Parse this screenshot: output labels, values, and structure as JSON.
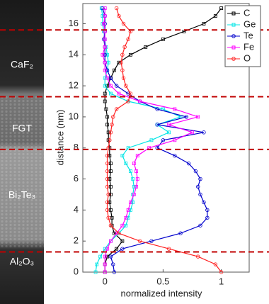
{
  "chart_data": {
    "type": "line",
    "orientation": "vertical",
    "xlabel": "normalized intensity",
    "ylabel": "distance (nm)",
    "xlim": [
      -0.19,
      1.24
    ],
    "ylim": [
      0,
      17.3
    ],
    "xticks": [
      0,
      0.5,
      1
    ],
    "yticks": [
      0,
      2,
      4,
      6,
      8,
      10,
      12,
      14,
      16
    ],
    "layer_labels": [
      "CaF₂",
      "FGT",
      "Bi₂Te₃",
      "Al₂O₃"
    ],
    "interface_lines": [
      15.6,
      11.3,
      7.9,
      1.3
    ],
    "interface_color": "#c00000",
    "legend": "upper right",
    "distance": [
      0,
      0.5,
      1,
      1.5,
      2,
      2.5,
      3,
      3.5,
      4,
      4.5,
      5,
      5.5,
      6,
      6.5,
      7,
      7.5,
      8,
      8.5,
      9,
      9.5,
      10,
      10.5,
      11,
      11.5,
      12,
      12.5,
      13,
      13.5,
      14,
      14.5,
      15,
      15.5,
      16,
      16.5,
      17
    ],
    "series": [
      {
        "name": "C",
        "color": "#000000",
        "marker": "square",
        "values": [
          0.0,
          0.0,
          0.02,
          0.1,
          0.15,
          0.08,
          0.06,
          0.06,
          0.05,
          0.04,
          0.05,
          0.05,
          0.04,
          0.05,
          0.05,
          0.04,
          0.04,
          0.03,
          0.03,
          0.02,
          0.02,
          0.01,
          0.0,
          0.0,
          0.02,
          0.05,
          0.08,
          0.12,
          0.22,
          0.35,
          0.5,
          0.68,
          0.85,
          0.95,
          1.0
        ]
      },
      {
        "name": "Ge",
        "color": "#00e5e5",
        "marker": "square",
        "values": [
          -0.08,
          -0.07,
          -0.04,
          0.0,
          0.05,
          0.12,
          0.18,
          0.2,
          0.22,
          0.24,
          0.24,
          0.25,
          0.24,
          0.22,
          0.18,
          0.15,
          0.2,
          0.4,
          0.55,
          0.45,
          0.65,
          0.5,
          0.2,
          0.05,
          0.0,
          0.0,
          0.02,
          0.03,
          0.02,
          0.01,
          0.0,
          -0.01,
          -0.02,
          -0.02,
          -0.03
        ]
      },
      {
        "name": "Te",
        "color": "#0000cc",
        "marker": "circle",
        "values": [
          0.08,
          0.07,
          0.05,
          0.15,
          0.4,
          0.65,
          0.82,
          0.88,
          0.88,
          0.85,
          0.82,
          0.8,
          0.82,
          0.78,
          0.72,
          0.6,
          0.45,
          0.5,
          0.85,
          0.45,
          0.7,
          0.45,
          0.3,
          0.2,
          0.1,
          0.05,
          0.02,
          0.0,
          0.0,
          0.0,
          -0.01,
          0.0,
          0.0,
          0.0,
          -0.02
        ]
      },
      {
        "name": "Fe",
        "color": "#ff00ff",
        "marker": "square",
        "values": [
          0.0,
          0.0,
          0.0,
          0.02,
          0.05,
          0.1,
          0.15,
          0.18,
          0.2,
          0.22,
          0.25,
          0.27,
          0.28,
          0.27,
          0.25,
          0.28,
          0.38,
          0.6,
          0.75,
          0.55,
          0.8,
          0.6,
          0.3,
          0.12,
          0.05,
          0.02,
          0.0,
          0.0,
          -0.02,
          0.0,
          0.0,
          0.0,
          -0.01,
          0.0,
          0.0
        ]
      },
      {
        "name": "O",
        "color": "#ff2020",
        "marker": "circle",
        "values": [
          1.0,
          0.95,
          0.8,
          0.55,
          0.3,
          0.12,
          0.05,
          0.03,
          0.02,
          0.02,
          0.03,
          0.02,
          0.02,
          0.02,
          0.02,
          0.02,
          0.03,
          0.04,
          0.05,
          0.06,
          0.07,
          0.1,
          0.2,
          0.22,
          0.18,
          0.16,
          0.15,
          0.14,
          0.15,
          0.17,
          0.2,
          0.22,
          0.16,
          0.12,
          0.1
        ]
      }
    ]
  }
}
